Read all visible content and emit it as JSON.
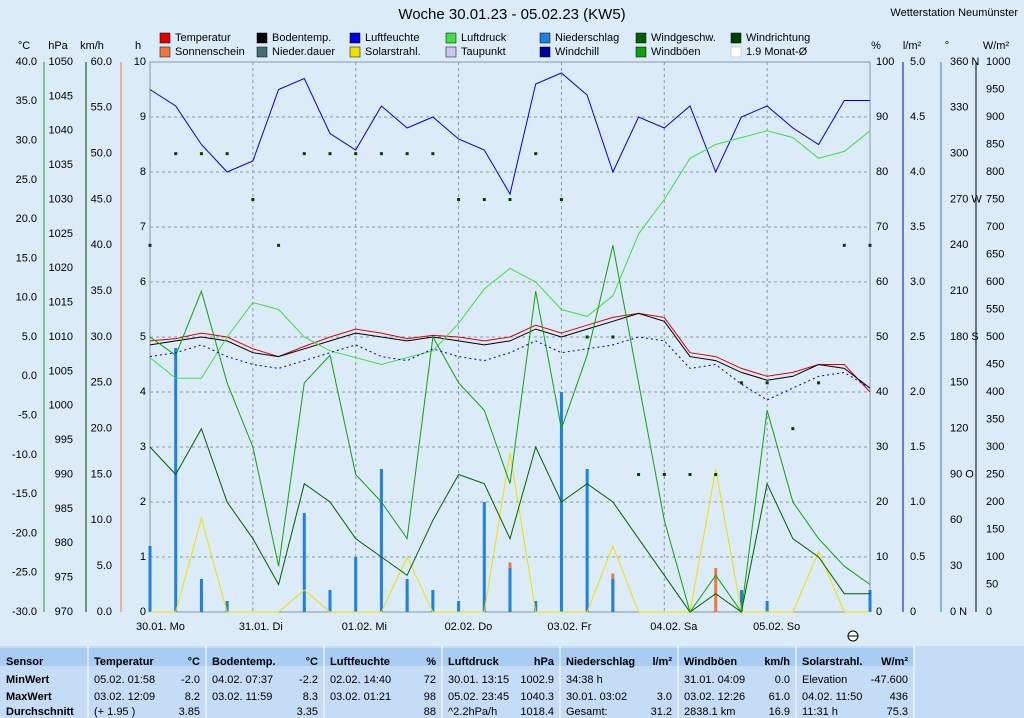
{
  "chart_data": {
    "type": "line",
    "title": "Woche 30.01.23 - 05.02.23 (KW5)",
    "station": "Wetterstation Neumünster",
    "xlim": [
      0,
      7
    ],
    "xticks": [
      {
        "value": 0,
        "label": "30.01.  Mo"
      },
      {
        "value": 1,
        "label": "31.01.  Di"
      },
      {
        "value": 2,
        "label": "01.02.  Mi"
      },
      {
        "value": 3,
        "label": "02.02.  Do"
      },
      {
        "value": 4,
        "label": "03.02.  Fr"
      },
      {
        "value": 5,
        "label": "04.02.  Sa"
      },
      {
        "value": 6,
        "label": "05.02.  So"
      }
    ],
    "x": [
      0,
      0.25,
      0.5,
      0.75,
      1,
      1.25,
      1.5,
      1.75,
      2,
      2.25,
      2.5,
      2.75,
      3,
      3.25,
      3.5,
      3.75,
      4,
      4.25,
      4.5,
      4.75,
      5,
      5.25,
      5.5,
      5.75,
      6,
      6.25,
      6.5,
      6.75,
      7
    ],
    "grid": true,
    "axes": [
      {
        "unit": "°C",
        "color": "#e00000",
        "lim": [
          -30,
          40
        ],
        "ticks": [
          {
            "value": 40,
            "label": "40.0"
          },
          {
            "value": 35,
            "label": "35.0"
          },
          {
            "value": 30,
            "label": "30.0"
          },
          {
            "value": 25,
            "label": "25.0"
          },
          {
            "value": 20,
            "label": "20.0"
          },
          {
            "value": 15,
            "label": "15.0"
          },
          {
            "value": 10,
            "label": "10.0"
          },
          {
            "value": 5,
            "label": "5.0"
          },
          {
            "value": 0,
            "label": "0.0"
          },
          {
            "value": -5,
            "label": "-5.0"
          },
          {
            "value": -10,
            "label": "-10.0"
          },
          {
            "value": -15,
            "label": "-15.0"
          },
          {
            "value": -20,
            "label": "-20.0"
          },
          {
            "value": -25,
            "label": "-25.0"
          },
          {
            "value": -30,
            "label": "-30.0"
          }
        ]
      },
      {
        "unit": "hPa",
        "color": "#20a020",
        "lim": [
          970,
          1050
        ],
        "ticks": [
          1050,
          1045,
          1040,
          1035,
          1030,
          1025,
          1020,
          1015,
          1010,
          1005,
          1000,
          995,
          990,
          985,
          980,
          975,
          970
        ]
      },
      {
        "unit": "km/h",
        "color": "#003c00",
        "lim": [
          0,
          60
        ],
        "ticks": [
          {
            "value": 60,
            "label": "60.0"
          },
          {
            "value": 55,
            "label": "55.0"
          },
          {
            "value": 50,
            "label": "50.0"
          },
          {
            "value": 45,
            "label": "45.0"
          },
          {
            "value": 40,
            "label": "40.0"
          },
          {
            "value": 35,
            "label": "35.0"
          },
          {
            "value": 30,
            "label": "30.0"
          },
          {
            "value": 25,
            "label": "25.0"
          },
          {
            "value": 20,
            "label": "20.0"
          },
          {
            "value": 15,
            "label": "15.0"
          },
          {
            "value": 10,
            "label": "10.0"
          },
          {
            "value": 5,
            "label": "5.0"
          },
          {
            "value": 0,
            "label": "0.0"
          }
        ]
      },
      {
        "unit": "h",
        "color": "#f07840",
        "lim": [
          0,
          10
        ],
        "ticks": [
          10,
          9,
          8,
          7,
          6,
          5,
          4,
          3,
          2,
          1,
          0
        ]
      },
      {
        "unit": "%",
        "color": "#0000e0",
        "lim": [
          0,
          100
        ],
        "ticks": [
          100,
          90,
          80,
          70,
          60,
          50,
          40,
          30,
          20,
          10,
          0
        ]
      },
      {
        "unit": "l/m²",
        "color": "#2080c0",
        "lim": [
          0,
          5
        ],
        "ticks": [
          {
            "value": 5,
            "label": "5.0"
          },
          {
            "value": 4.5,
            "label": "4.5"
          },
          {
            "value": 4,
            "label": "4.0"
          },
          {
            "value": 3.5,
            "label": "3.5"
          },
          {
            "value": 3,
            "label": "3.0"
          },
          {
            "value": 2.5,
            "label": "2.5"
          },
          {
            "value": 2,
            "label": "2.0"
          },
          {
            "value": 1.5,
            "label": "1.5"
          },
          {
            "value": 1,
            "label": "1.0"
          },
          {
            "value": 0.5,
            "label": "0.5"
          },
          0
        ]
      },
      {
        "unit": "°",
        "color": "#000000",
        "lim": [
          0,
          360
        ],
        "ticks": [
          {
            "value": 360,
            "label": "360 N"
          },
          330,
          300,
          {
            "value": 270,
            "label": "270 W"
          },
          240,
          210,
          {
            "value": 180,
            "label": "180 S"
          },
          150,
          120,
          {
            "value": 90,
            "label": "90  O"
          },
          60,
          30,
          {
            "value": 0,
            "label": "0  N"
          }
        ]
      },
      {
        "unit": "W/m²",
        "color": "#e0d040",
        "lim": [
          0,
          1000
        ],
        "ticks": [
          1000,
          950,
          900,
          850,
          800,
          750,
          700,
          650,
          600,
          550,
          500,
          450,
          400,
          350,
          300,
          250,
          200,
          150,
          100,
          50,
          0
        ]
      }
    ],
    "series": [
      {
        "name": "Temperatur",
        "color": "#e00000",
        "axis": "°C",
        "style": "line",
        "values": [
          4.5,
          4.8,
          5.5,
          5.0,
          3.5,
          2.5,
          3.8,
          5.0,
          6.0,
          5.5,
          4.8,
          5.2,
          5.0,
          4.5,
          5.0,
          6.5,
          5.5,
          6.5,
          7.5,
          8.0,
          7.5,
          3.0,
          2.5,
          1.0,
          0.0,
          0.5,
          1.5,
          1.5,
          -2.0
        ]
      },
      {
        "name": "Sonnenschein",
        "color": "#f07840",
        "axis": "h",
        "style": "bars",
        "values": [
          0,
          0,
          0.3,
          0,
          0,
          0,
          0.1,
          0,
          0,
          0,
          0.3,
          0,
          0,
          0,
          0.9,
          0,
          0,
          0,
          0.7,
          0,
          0,
          0,
          0.8,
          0,
          0,
          0,
          0,
          0,
          0
        ]
      },
      {
        "name": "Bodentemp.",
        "color": "#000000",
        "axis": "°C",
        "style": "line",
        "values": [
          4.0,
          4.5,
          5.0,
          4.5,
          3.0,
          2.5,
          3.5,
          4.5,
          5.5,
          5.0,
          4.5,
          5.0,
          4.5,
          4.0,
          4.5,
          6.0,
          5.0,
          6.0,
          7.0,
          8.0,
          7.0,
          2.5,
          2.0,
          0.5,
          -0.5,
          0.0,
          1.5,
          1.0,
          -1.5
        ]
      },
      {
        "name": "Nieder.dauer",
        "color": "#407070"
      },
      {
        "name": "Luftfeuchte",
        "color": "#0000e0",
        "axis": "%",
        "style": "line",
        "values": [
          95,
          92,
          85,
          80,
          82,
          95,
          97,
          87,
          84,
          92,
          88,
          90,
          86,
          84,
          76,
          96,
          98,
          94,
          80,
          90,
          88,
          92,
          80,
          90,
          92,
          88,
          85,
          93,
          93
        ]
      },
      {
        "name": "Solarstrahl.",
        "color": "#f0e000",
        "axis": "W/m²",
        "style": "line",
        "values": [
          0,
          0,
          170,
          0,
          0,
          0,
          40,
          0,
          0,
          0,
          100,
          0,
          0,
          0,
          290,
          0,
          0,
          0,
          120,
          0,
          0,
          0,
          260,
          0,
          0,
          0,
          110,
          0,
          0
        ]
      },
      {
        "name": "Luftdruck",
        "color": "#40e040",
        "axis": "hPa",
        "style": "line",
        "values": [
          1007,
          1004,
          1004,
          1010,
          1015,
          1014,
          1010,
          1008,
          1007,
          1006,
          1007,
          1008,
          1012,
          1017,
          1020,
          1018,
          1014,
          1013,
          1016,
          1025,
          1030,
          1036,
          1038,
          1039,
          1040,
          1039,
          1036,
          1037,
          1040
        ]
      },
      {
        "name": "Taupunkt",
        "color": "#c8c8f0",
        "axis": "°C",
        "style": "dotted",
        "values": [
          2.5,
          3.0,
          4.0,
          2.5,
          1.5,
          1.0,
          2.0,
          3.0,
          4.0,
          2.5,
          2.0,
          3.5,
          2.5,
          2.0,
          3.0,
          4.5,
          3.0,
          3.5,
          4.0,
          5.0,
          4.5,
          1.0,
          1.5,
          -1.0,
          -3.0,
          -1.5,
          0.0,
          0.5,
          -1.5
        ]
      },
      {
        "name": "Niederschlag",
        "color": "#2080e0",
        "axis": "l/m²",
        "style": "bars",
        "values": [
          0.6,
          2.4,
          0.3,
          0.1,
          0,
          0,
          0.9,
          0.2,
          0.5,
          1.3,
          0.3,
          0.2,
          0.1,
          1.0,
          0.4,
          0.1,
          2.0,
          1.3,
          0.3,
          0,
          0,
          0,
          0,
          0.2,
          0.1,
          0,
          0,
          0,
          0.2
        ]
      },
      {
        "name": "Windchill",
        "color": "#0000a0"
      },
      {
        "name": "Windgeschw.",
        "color": "#006000",
        "axis": "km/h",
        "style": "line",
        "values": [
          18,
          15,
          20,
          12,
          8,
          3,
          14,
          12,
          8,
          6,
          4,
          10,
          15,
          14,
          8,
          18,
          12,
          14,
          12,
          8,
          4,
          0,
          2,
          0,
          14,
          8,
          6,
          2,
          2
        ]
      },
      {
        "name": "Windböen",
        "color": "#10a010",
        "axis": "km/h",
        "style": "line",
        "values": [
          30,
          28,
          35,
          25,
          18,
          5,
          25,
          28,
          15,
          12,
          8,
          30,
          25,
          22,
          14,
          35,
          20,
          28,
          40,
          25,
          10,
          0,
          4,
          0,
          22,
          12,
          8,
          5,
          3
        ]
      },
      {
        "name": "Windrichtung",
        "color": "#004000",
        "axis": "°",
        "style": "dots",
        "values": [
          240,
          300,
          300,
          300,
          270,
          240,
          300,
          300,
          300,
          300,
          300,
          300,
          270,
          270,
          270,
          300,
          270,
          180,
          180,
          90,
          90,
          90,
          90,
          150,
          150,
          120,
          150,
          240,
          240
        ]
      },
      {
        "name": "1.9 Monat-Ø",
        "color": "#b0b0b0",
        "visible": false
      }
    ]
  },
  "stats": {
    "row_labels": [
      "Sensor",
      "MinWert",
      "MaxWert",
      "Durchschnitt"
    ],
    "groups": [
      {
        "title": "Temperatur",
        "unit": "°C",
        "rows": [
          {
            "left": "05.02.  01:58",
            "right": "-2.0"
          },
          {
            "left": "03.02.  12:09",
            "right": "8.2"
          },
          {
            "left": "(+ 1.95 )",
            "right": "3.85"
          }
        ]
      },
      {
        "title": "Bodentemp.",
        "unit": "°C",
        "rows": [
          {
            "left": "04.02.  07:37",
            "right": "-2.2"
          },
          {
            "left": "03.02.  11:59",
            "right": "8.3"
          },
          {
            "right": "3.35"
          }
        ]
      },
      {
        "title": "Luftfeuchte",
        "unit": "%",
        "rows": [
          {
            "left": "02.02.  14:40",
            "right": "72"
          },
          {
            "left": "03.02.  01:21",
            "right": "98"
          },
          {
            "right": "88"
          }
        ]
      },
      {
        "title": "Luftdruck",
        "unit": "hPa",
        "rows": [
          {
            "left": "30.01.  13:15",
            "right": "1002.9"
          },
          {
            "left": "05.02.  23:45",
            "right": "1040.3"
          },
          {
            "left": "^2.2hPa/h",
            "right": "1018.4"
          }
        ]
      },
      {
        "title": "Niederschlag",
        "unit": "l/m²",
        "rows": [
          {
            "left": "34:38 h"
          },
          {
            "left": "30.01.  03:02",
            "right": "3.0"
          },
          {
            "left": "Gesamt:",
            "right": "31.2"
          }
        ]
      },
      {
        "title": "Windböen",
        "unit": "km/h",
        "rows": [
          {
            "left": "31.01.  04:09",
            "right": "0.0"
          },
          {
            "left": "03.02.  12:26",
            "right": "61.0"
          },
          {
            "left": "2838.1 km",
            "right": "16.9"
          }
        ]
      },
      {
        "title": "Solarstrahl.",
        "unit": "W/m²",
        "rows": [
          {
            "left": "Elevation",
            "right": "-47.600"
          },
          {
            "left": "04.02.  11:50",
            "right": "436"
          },
          {
            "left": "11:31 h",
            "right": "75.3"
          }
        ]
      }
    ]
  }
}
